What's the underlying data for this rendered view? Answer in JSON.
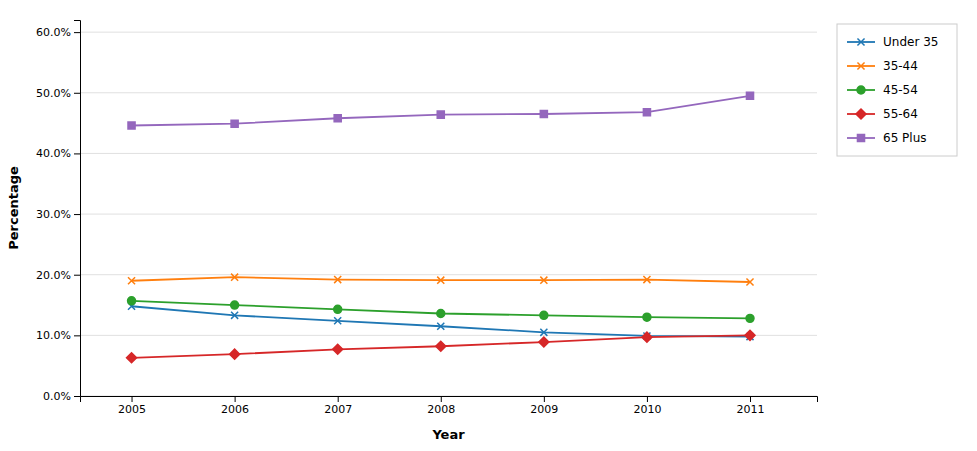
{
  "chart_data": {
    "type": "line",
    "xlabel": "Year",
    "ylabel": "Percentage",
    "x": [
      2005,
      2006,
      2007,
      2008,
      2009,
      2010,
      2011
    ],
    "xlim": [
      2004.5,
      2011.65
    ],
    "xticks": [
      2005,
      2006,
      2007,
      2008,
      2009,
      2010,
      2011
    ],
    "ylim": [
      0.0,
      0.62
    ],
    "yticks": [
      {
        "value": 0.0,
        "label": "0.0%"
      },
      {
        "value": 0.1,
        "label": "10.0%"
      },
      {
        "value": 0.2,
        "label": "20.0%"
      },
      {
        "value": 0.3,
        "label": "30.0%"
      },
      {
        "value": 0.4,
        "label": "40.0%"
      },
      {
        "value": 0.5,
        "label": "50.0%"
      },
      {
        "value": 0.6,
        "label": "60.0%"
      }
    ],
    "grid": true,
    "legend": "upper right",
    "series": [
      {
        "name": "Under 35",
        "marker": "x",
        "values": [
          0.148,
          0.133,
          0.124,
          0.115,
          0.105,
          0.099,
          0.098
        ]
      },
      {
        "name": "35-44",
        "marker": "x",
        "values": [
          0.19,
          0.196,
          0.192,
          0.191,
          0.191,
          0.192,
          0.188
        ]
      },
      {
        "name": "45-54",
        "marker": "circle",
        "values": [
          0.157,
          0.15,
          0.143,
          0.136,
          0.133,
          0.13,
          0.128
        ]
      },
      {
        "name": "55-64",
        "marker": "diamond",
        "values": [
          0.063,
          0.069,
          0.077,
          0.082,
          0.089,
          0.097,
          0.1
        ]
      },
      {
        "name": "65 Plus",
        "marker": "square",
        "values": [
          0.446,
          0.449,
          0.458,
          0.464,
          0.465,
          0.468,
          0.495
        ]
      }
    ]
  }
}
